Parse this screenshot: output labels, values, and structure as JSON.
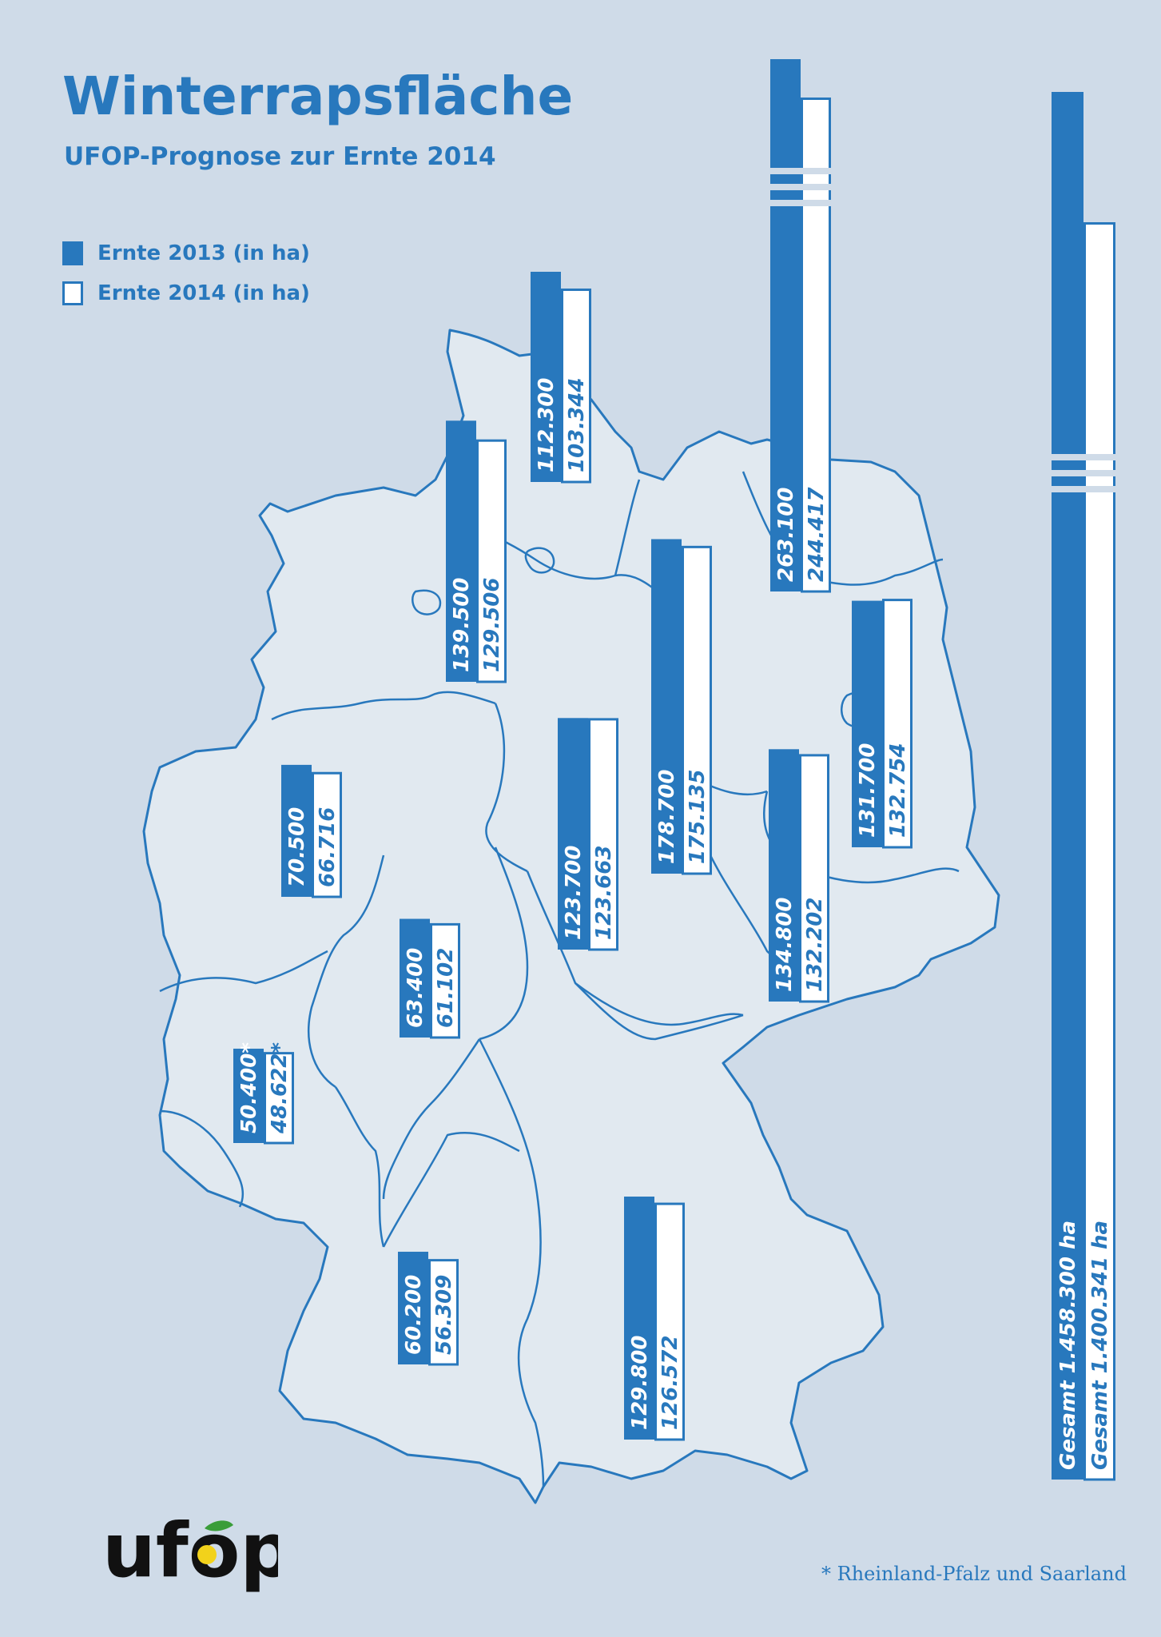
{
  "title": "Winterrapsfläche",
  "subtitle": "UFOP-Prognose zur Ernte 2014",
  "legend": [
    {
      "label": "Ernte 2013 (in ha)",
      "style": "filled"
    },
    {
      "label": "Ernte 2014 (in ha)",
      "style": "outline"
    }
  ],
  "colors": {
    "accent": "#2878bd",
    "background": "#cfdbe8",
    "map_fill": "#e1e9f0"
  },
  "footnote": "* Rheinland-Pfalz und Saarland",
  "logo_text": "ufop",
  "chart_data": {
    "type": "bar",
    "orientation": "vertical bars placed on map of Germany, value labels rotated",
    "series": [
      {
        "name": "Ernte 2013 (in ha)"
      },
      {
        "name": "Ernte 2014 (in ha)"
      }
    ],
    "regions": [
      {
        "id": "sh",
        "values": [
          112300,
          103344
        ],
        "labels": [
          "112.300",
          "103.344"
        ]
      },
      {
        "id": "mv",
        "values": [
          263100,
          244417
        ],
        "labels": [
          "263.100",
          "244.417"
        ],
        "broken_axis": true
      },
      {
        "id": "ni",
        "values": [
          139500,
          129506
        ],
        "labels": [
          "139.500",
          "129.506"
        ]
      },
      {
        "id": "st",
        "values": [
          178700,
          175135
        ],
        "labels": [
          "178.700",
          "175.135"
        ]
      },
      {
        "id": "bb",
        "values": [
          131700,
          132754
        ],
        "labels": [
          "131.700",
          "132.754"
        ]
      },
      {
        "id": "th",
        "values": [
          123700,
          123663
        ],
        "labels": [
          "123.700",
          "123.663"
        ]
      },
      {
        "id": "sn",
        "values": [
          134800,
          132202
        ],
        "labels": [
          "134.800",
          "132.202"
        ]
      },
      {
        "id": "nw",
        "values": [
          70500,
          66716
        ],
        "labels": [
          "70.500",
          "66.716"
        ]
      },
      {
        "id": "he",
        "values": [
          63400,
          61102
        ],
        "labels": [
          "63.400",
          "61.102"
        ]
      },
      {
        "id": "rp",
        "values": [
          50400,
          48622
        ],
        "labels": [
          "50.400*",
          "48.622*"
        ]
      },
      {
        "id": "bw",
        "values": [
          60200,
          56309
        ],
        "labels": [
          "60.200",
          "56.309"
        ]
      },
      {
        "id": "by",
        "values": [
          129800,
          126572
        ],
        "labels": [
          "129.800",
          "126.572"
        ]
      },
      {
        "id": "total",
        "values": [
          1458300,
          1400341
        ],
        "labels": [
          "Gesamt 1.458.300 ha",
          "Gesamt 1.400.341 ha"
        ],
        "broken_axis": true
      }
    ]
  }
}
